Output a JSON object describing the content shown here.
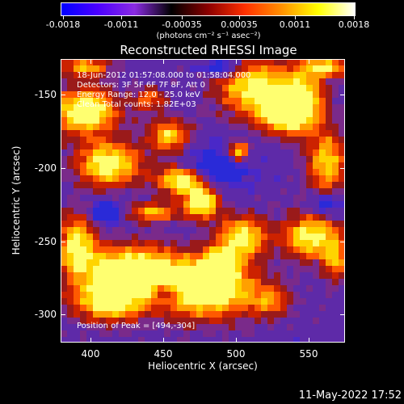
{
  "colorbar": {
    "tick_labels": [
      "-0.0018",
      "-0.0011",
      "-0.00035",
      "0.00035",
      "0.0011",
      "0.0018"
    ],
    "unit_label": "(photons cm⁻² s⁻¹ asec⁻²)",
    "colors": [
      "#0000ff",
      "#4c00ff",
      "#8a2be2",
      "#000000",
      "#8b0000",
      "#ff3000",
      "#ff9000",
      "#ffff00",
      "#ffffff"
    ]
  },
  "plot": {
    "title": "Reconstructed RHESSI Image",
    "info_lines": [
      "18-Jun-2012 01:57:08.000 to 01:58:04.000",
      "Detectors: 3F 5F 6F 7F 8F, Att 0",
      "Energy Range: 12.0 - 25.0 keV",
      "Clean     Total counts: 1.82E+03"
    ],
    "peak_label": "Position of Peak = [494,-304]"
  },
  "axes": {
    "x_label": "Heliocentric X (arcsec)",
    "y_label": "Heliocentric Y (arcsec)",
    "x_ticks": [
      "400",
      "450",
      "500",
      "550"
    ],
    "y_ticks": [
      "-150",
      "-200",
      "-250",
      "-300"
    ]
  },
  "footer": {
    "timestamp": "11-May-2022 17:52"
  }
}
